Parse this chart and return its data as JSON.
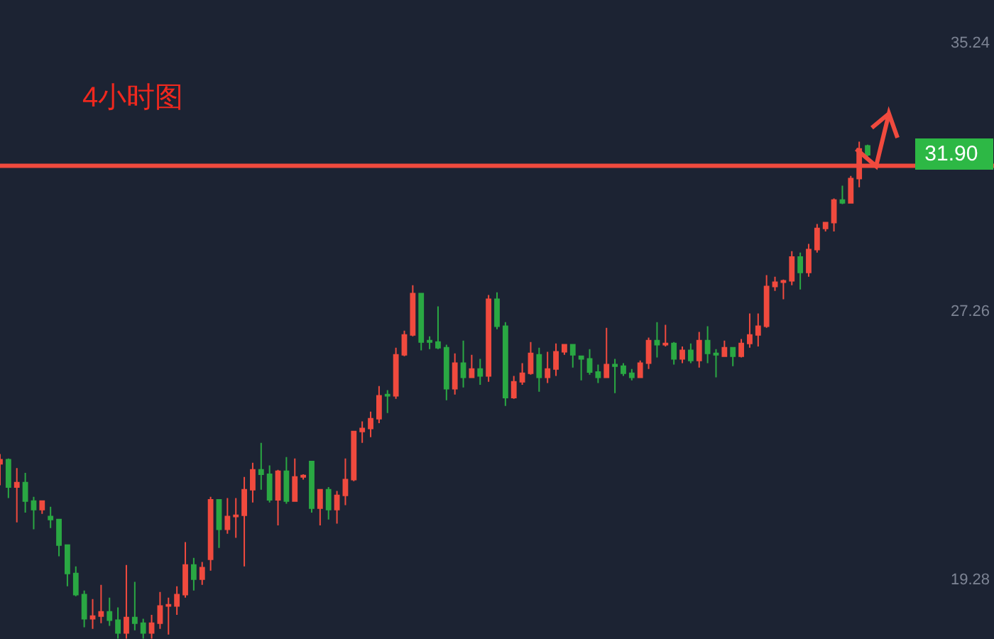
{
  "chart_data": {
    "type": "candlestick",
    "title": "4小时图",
    "tick_labels": "y",
    "grid": false,
    "ylim": [
      17.5,
      36.5
    ],
    "yticks": [
      19.28,
      27.26,
      35.24
    ],
    "categories": [
      null,
      null,
      null,
      null,
      null,
      null,
      null,
      null,
      null,
      null,
      null,
      null,
      null,
      null,
      null,
      null,
      null,
      null,
      null,
      null,
      null,
      null,
      null,
      null,
      null,
      null,
      null,
      null,
      null,
      null,
      null,
      null,
      null,
      null,
      null,
      null,
      null,
      null,
      null,
      null,
      null,
      null,
      null,
      null,
      null,
      null,
      null,
      null,
      null,
      null,
      null,
      null,
      null,
      null,
      null,
      null,
      null,
      null,
      null,
      null,
      null,
      null,
      null,
      null,
      null,
      null,
      null,
      null,
      null,
      null,
      null,
      null,
      null,
      null,
      null,
      null,
      null,
      null,
      null,
      null,
      null,
      null,
      null,
      null,
      null,
      null,
      null,
      null,
      null,
      null,
      null,
      null,
      null,
      null,
      null,
      null,
      null,
      null,
      null,
      null,
      null,
      null,
      null,
      null
    ],
    "ohlc": [
      [
        22.71,
        23.0,
        22.07,
        22.83
      ],
      [
        22.83,
        22.87,
        21.69,
        22.02
      ],
      [
        22.02,
        22.58,
        20.97,
        22.15
      ],
      [
        22.15,
        22.44,
        21.26,
        21.6
      ],
      [
        21.6,
        21.73,
        20.76,
        21.35
      ],
      [
        21.35,
        21.6,
        21.22,
        21.6
      ],
      [
        21.14,
        21.43,
        20.8,
        21.05
      ],
      [
        21.05,
        21.05,
        19.96,
        20.29
      ],
      [
        20.29,
        20.29,
        19.07,
        19.45
      ],
      [
        19.45,
        19.66,
        18.77,
        18.82
      ],
      [
        18.82,
        18.94,
        17.85,
        18.1
      ],
      [
        18.1,
        18.69,
        17.8,
        18.18
      ],
      [
        18.18,
        19.11,
        17.97,
        18.31
      ],
      [
        18.31,
        18.73,
        17.89,
        18.06
      ],
      [
        18.06,
        18.44,
        17.51,
        17.68
      ],
      [
        17.68,
        19.7,
        17.51,
        18.14
      ],
      [
        18.14,
        19.2,
        17.76,
        17.97
      ],
      [
        17.97,
        18.1,
        17.51,
        17.68
      ],
      [
        17.68,
        18.22,
        17.51,
        17.97
      ],
      [
        17.97,
        18.9,
        17.8,
        18.48
      ],
      [
        18.48,
        18.73,
        17.63,
        18.52
      ],
      [
        18.48,
        19.07,
        18.22,
        18.82
      ],
      [
        18.82,
        20.38,
        18.73,
        19.7
      ],
      [
        19.7,
        19.91,
        18.94,
        19.28
      ],
      [
        19.28,
        19.79,
        19.11,
        19.62
      ],
      [
        19.87,
        21.73,
        19.53,
        21.64
      ],
      [
        21.64,
        21.64,
        20.21,
        20.76
      ],
      [
        20.76,
        21.69,
        20.63,
        21.14
      ],
      [
        21.14,
        21.69,
        20.51,
        21.18
      ],
      [
        21.18,
        22.32,
        19.66,
        21.94
      ],
      [
        21.94,
        22.74,
        21.56,
        22.53
      ],
      [
        22.53,
        23.33,
        21.94,
        22.4
      ],
      [
        22.4,
        22.66,
        21.56,
        21.64
      ],
      [
        21.64,
        22.53,
        20.88,
        22.49
      ],
      [
        22.49,
        22.91,
        21.52,
        21.6
      ],
      [
        21.6,
        22.87,
        21.6,
        22.32
      ],
      [
        22.32,
        22.4,
        22.24,
        22.36
      ],
      [
        22.78,
        22.78,
        21.26,
        21.39
      ],
      [
        21.39,
        21.94,
        20.88,
        21.94
      ],
      [
        21.94,
        22.02,
        21.05,
        21.35
      ],
      [
        21.35,
        21.9,
        20.93,
        21.77
      ],
      [
        21.77,
        22.87,
        21.48,
        22.24
      ],
      [
        22.24,
        23.67,
        22.19,
        23.67
      ],
      [
        23.67,
        23.97,
        23.33,
        23.76
      ],
      [
        23.76,
        24.26,
        23.5,
        24.05
      ],
      [
        24.05,
        25.02,
        23.92,
        24.73
      ],
      [
        24.77,
        24.9,
        24.22,
        24.73
      ],
      [
        24.73,
        26.16,
        24.64,
        25.95
      ],
      [
        25.95,
        26.67,
        25.91,
        26.54
      ],
      [
        26.54,
        28.02,
        26.5,
        27.77
      ],
      [
        27.77,
        27.77,
        26.08,
        26.33
      ],
      [
        26.37,
        26.5,
        26.12,
        26.33
      ],
      [
        26.33,
        27.39,
        26.12,
        26.16
      ],
      [
        26.16,
        26.25,
        24.6,
        24.94
      ],
      [
        24.94,
        25.99,
        24.77,
        25.7
      ],
      [
        25.7,
        26.37,
        24.98,
        25.28
      ],
      [
        25.28,
        25.95,
        25.28,
        25.53
      ],
      [
        25.53,
        25.83,
        25.06,
        25.32
      ],
      [
        25.32,
        27.73,
        25.15,
        27.6
      ],
      [
        27.6,
        27.81,
        26.71,
        26.8
      ],
      [
        26.8,
        26.92,
        24.43,
        24.68
      ],
      [
        24.68,
        25.32,
        24.64,
        25.15
      ],
      [
        25.15,
        25.7,
        25.06,
        25.4
      ],
      [
        25.4,
        26.33,
        25.36,
        25.99
      ],
      [
        25.95,
        26.16,
        24.85,
        25.28
      ],
      [
        25.28,
        26.04,
        25.11,
        25.53
      ],
      [
        25.53,
        26.29,
        25.32,
        26.04
      ],
      [
        26.04,
        26.25,
        25.95,
        26.25
      ],
      [
        26.25,
        26.25,
        25.57,
        25.95
      ],
      [
        25.91,
        25.91,
        25.19,
        25.83
      ],
      [
        25.83,
        26.12,
        25.36,
        25.44
      ],
      [
        25.44,
        25.66,
        25.11,
        25.28
      ],
      [
        25.28,
        26.75,
        25.28,
        25.66
      ],
      [
        25.66,
        25.83,
        24.81,
        25.61
      ],
      [
        25.61,
        25.7,
        25.32,
        25.4
      ],
      [
        25.4,
        25.53,
        25.19,
        25.28
      ],
      [
        25.28,
        25.78,
        25.28,
        25.7
      ],
      [
        25.7,
        26.46,
        25.53,
        26.37
      ],
      [
        26.37,
        26.92,
        25.87,
        26.25
      ],
      [
        26.25,
        26.84,
        26.2,
        26.29
      ],
      [
        26.29,
        26.33,
        25.66,
        25.83
      ],
      [
        25.83,
        26.2,
        25.7,
        26.08
      ],
      [
        26.08,
        26.29,
        25.7,
        25.78
      ],
      [
        25.78,
        26.63,
        25.57,
        26.37
      ],
      [
        26.37,
        26.8,
        25.7,
        25.99
      ],
      [
        25.99,
        26.12,
        25.28,
        25.95
      ],
      [
        25.91,
        26.37,
        25.91,
        26.16
      ],
      [
        26.16,
        26.16,
        25.61,
        25.91
      ],
      [
        25.91,
        26.42,
        25.87,
        26.29
      ],
      [
        26.29,
        27.18,
        26.16,
        26.54
      ],
      [
        26.54,
        27.18,
        26.2,
        26.8
      ],
      [
        26.8,
        28.32,
        26.75,
        27.98
      ],
      [
        27.98,
        28.27,
        27.85,
        28.11
      ],
      [
        28.11,
        28.19,
        27.6,
        28.15
      ],
      [
        28.15,
        29.03,
        28.02,
        28.86
      ],
      [
        28.86,
        28.99,
        27.89,
        28.4
      ],
      [
        28.4,
        29.25,
        28.27,
        29.08
      ],
      [
        29.08,
        29.84,
        28.99,
        29.71
      ],
      [
        29.71,
        29.88,
        29.62,
        29.88
      ],
      [
        29.88,
        30.6,
        29.62,
        30.55
      ],
      [
        30.55,
        30.98,
        30.43,
        30.47
      ],
      [
        30.47,
        31.27,
        30.47,
        31.19
      ],
      [
        31.19,
        32.29,
        30.93,
        32.07
      ],
      [
        32.16,
        32.2,
        31.85,
        31.9
      ]
    ],
    "colors": [
      "#f04a3e",
      "#2aa843",
      "#f04a3e",
      "#2aa843",
      "#2aa843",
      "#f04a3e",
      "#2aa843",
      "#2aa843",
      "#2aa843",
      "#2aa843",
      "#2aa843",
      "#f04a3e",
      "#f04a3e",
      "#2aa843",
      "#2aa843",
      "#f04a3e",
      "#2aa843",
      "#2aa843",
      "#f04a3e",
      "#f04a3e",
      "#f04a3e",
      "#f04a3e",
      "#f04a3e",
      "#2aa843",
      "#f04a3e",
      "#f04a3e",
      "#2aa843",
      "#f04a3e",
      "#f04a3e",
      "#f04a3e",
      "#f04a3e",
      "#2aa843",
      "#2aa843",
      "#f04a3e",
      "#2aa843",
      "#f04a3e",
      "#f04a3e",
      "#2aa843",
      "#f04a3e",
      "#2aa843",
      "#f04a3e",
      "#f04a3e",
      "#f04a3e",
      "#f04a3e",
      "#f04a3e",
      "#f04a3e",
      "#2aa843",
      "#f04a3e",
      "#f04a3e",
      "#f04a3e",
      "#2aa843",
      "#2aa843",
      "#2aa843",
      "#2aa843",
      "#f04a3e",
      "#2aa843",
      "#f04a3e",
      "#2aa843",
      "#f04a3e",
      "#2aa843",
      "#2aa843",
      "#f04a3e",
      "#f04a3e",
      "#f04a3e",
      "#2aa843",
      "#f04a3e",
      "#f04a3e",
      "#f04a3e",
      "#2aa843",
      "#2aa843",
      "#2aa843",
      "#2aa843",
      "#f04a3e",
      "#2aa843",
      "#2aa843",
      "#2aa843",
      "#f04a3e",
      "#f04a3e",
      "#2aa843",
      "#f04a3e",
      "#2aa843",
      "#f04a3e",
      "#2aa843",
      "#f04a3e",
      "#2aa843",
      "#2aa843",
      "#f04a3e",
      "#2aa843",
      "#f04a3e",
      "#f04a3e",
      "#f04a3e",
      "#f04a3e",
      "#f04a3e",
      "#f04a3e",
      "#f04a3e",
      "#2aa843",
      "#f04a3e",
      "#f04a3e",
      "#f04a3e",
      "#f04a3e",
      "#2aa843",
      "#f04a3e",
      "#f04a3e",
      "#2aa843"
    ],
    "ref_lines": [
      {
        "axis": "y",
        "value": 31.57,
        "color": "#f04a3e"
      }
    ],
    "annotations": [
      "31.90"
    ]
  }
}
